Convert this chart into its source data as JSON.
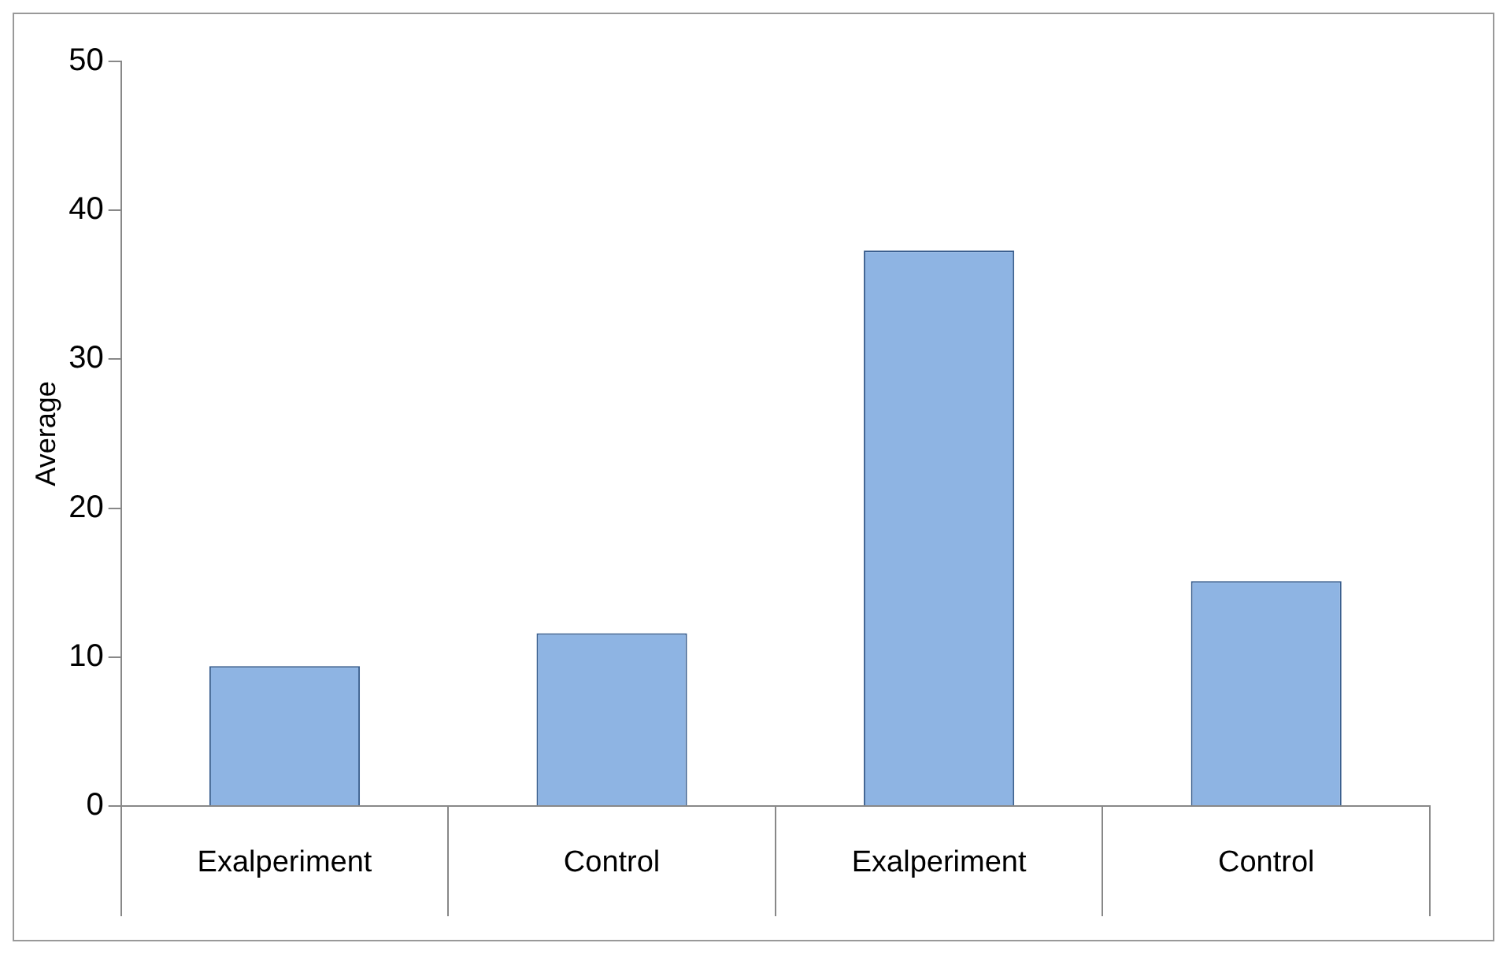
{
  "chart_data": {
    "type": "bar",
    "ylabel": "Average",
    "categories": [
      "Exalperiment",
      "Control",
      "Exalperiment",
      "Control"
    ],
    "values": [
      9.4,
      11.6,
      37.3,
      15.1
    ],
    "color": "#8eb4e3",
    "ylim": [
      0,
      50
    ],
    "yticks": [
      0,
      10,
      20,
      30,
      40,
      50
    ],
    "grid": false,
    "legend": false
  }
}
